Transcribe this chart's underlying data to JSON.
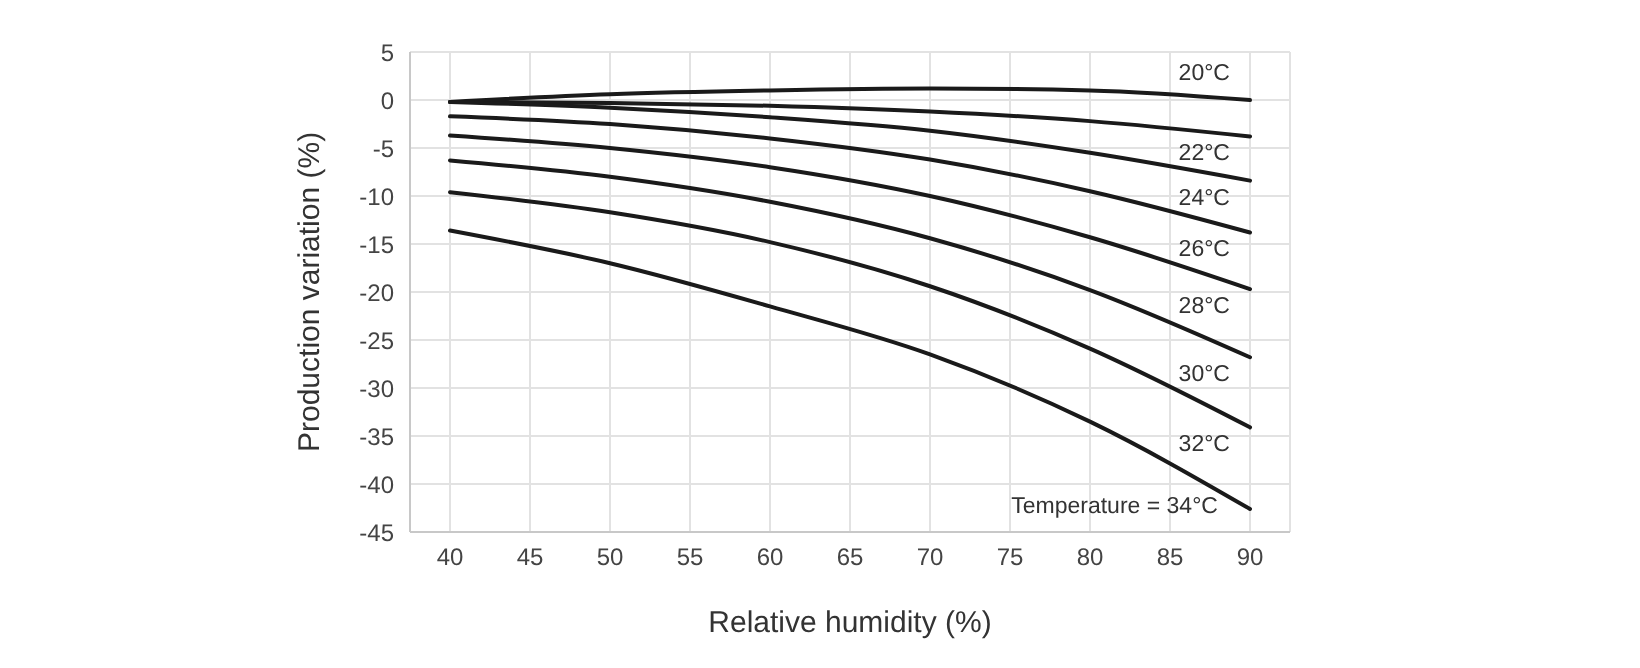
{
  "chart_data": {
    "type": "line",
    "xlabel": "Relative humidity (%)",
    "ylabel": "Production variation (%)",
    "x": [
      40,
      50,
      60,
      70,
      80,
      90
    ],
    "series": [
      {
        "name": "20°C",
        "color": "#1a1a1a",
        "values": [
          -0.2,
          0.6,
          1.0,
          1.2,
          1.0,
          0.0
        ]
      },
      {
        "name": "22°C",
        "color": "#1a1a1a",
        "values": [
          -0.2,
          -0.3,
          -0.6,
          -1.2,
          -2.2,
          -3.8
        ]
      },
      {
        "name": "24°C",
        "color": "#1a1a1a",
        "values": [
          -0.2,
          -0.8,
          -1.8,
          -3.2,
          -5.5,
          -8.4
        ]
      },
      {
        "name": "26°C",
        "color": "#1a1a1a",
        "values": [
          -1.7,
          -2.5,
          -4.0,
          -6.2,
          -9.5,
          -13.8
        ]
      },
      {
        "name": "28°C",
        "color": "#1a1a1a",
        "values": [
          -3.7,
          -5.0,
          -7.0,
          -10.0,
          -14.3,
          -19.7
        ]
      },
      {
        "name": "30°C",
        "color": "#1a1a1a",
        "values": [
          -6.3,
          -8.0,
          -10.6,
          -14.4,
          -19.8,
          -26.8
        ]
      },
      {
        "name": "32°C",
        "color": "#1a1a1a",
        "values": [
          -9.6,
          -11.7,
          -14.8,
          -19.4,
          -25.9,
          -34.1
        ]
      },
      {
        "name": "Temperature = 34°C",
        "color": "#1a1a1a",
        "values": [
          -13.6,
          -17.0,
          -21.5,
          -26.5,
          -33.5,
          -42.6
        ]
      }
    ],
    "xlim": [
      37.5,
      92.5
    ],
    "xticks": [
      40,
      45,
      50,
      55,
      60,
      65,
      70,
      75,
      80,
      85,
      90
    ],
    "ylim": [
      -45,
      5
    ],
    "yticks": [
      -45,
      -40,
      -35,
      -30,
      -25,
      -20,
      -15,
      -10,
      -5,
      0,
      5
    ],
    "grid": true,
    "legend": false,
    "marker": "none",
    "line_style": "solid"
  }
}
